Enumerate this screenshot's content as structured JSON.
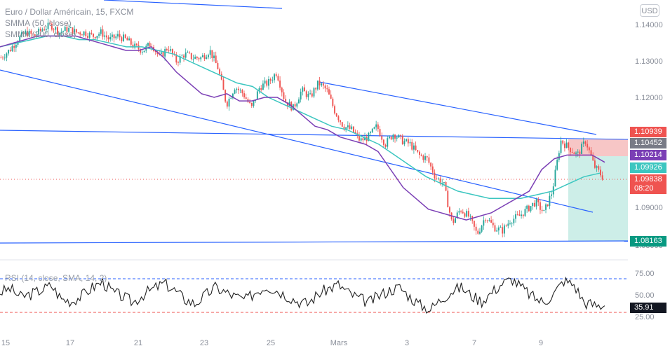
{
  "legend": {
    "symbol": "Euro / Dollar Américain, 15, FXCM",
    "ind1": "SMMA (50, close)",
    "ind2": "SMMA (200, close)",
    "rsi": "RSI (14, close, SMA, 14, 2)"
  },
  "currency": "USD",
  "price_axis": [
    "1.14000",
    "1.13000",
    "1.12000",
    "1.09000",
    "1.08000"
  ],
  "rsi_axis": [
    "75.00",
    "50.00",
    "25.00"
  ],
  "date_axis": [
    "15",
    "17",
    "21",
    "23",
    "25",
    "Mars",
    "3",
    "7",
    "9"
  ],
  "price_tags": {
    "high": "1.10939",
    "gray": "1.10452",
    "smma50": "1.10214",
    "smma200": "1.09926",
    "current": "1.09838",
    "countdown": "08:20",
    "target": "1.08163",
    "rsi_value": "35.91"
  },
  "colors": {
    "up": "#26a69a",
    "down": "#ef5350",
    "trendline": "#2962ff",
    "smma50": "#7b3fb5",
    "smma200": "#3cc6c0",
    "stop_zone": "#f7c6c6",
    "target_zone": "#cdeee8"
  },
  "chart_data": {
    "type": "candlestick",
    "title": "Euro / Dollar Américain, 15, FXCM",
    "yrange": [
      1.078,
      1.144
    ],
    "price_path": [
      1.131,
      1.133,
      1.136,
      1.138,
      1.137,
      1.139,
      1.14,
      1.138,
      1.139,
      1.138,
      1.138,
      1.137,
      1.138,
      1.136,
      1.137,
      1.136,
      1.134,
      1.133,
      1.135,
      1.131,
      1.134,
      1.13,
      1.132,
      1.131,
      1.131,
      1.133,
      1.128,
      1.118,
      1.123,
      1.121,
      1.117,
      1.123,
      1.124,
      1.127,
      1.119,
      1.117,
      1.122,
      1.12,
      1.124,
      1.122,
      1.116,
      1.112,
      1.111,
      1.108,
      1.109,
      1.112,
      1.107,
      1.11,
      1.108,
      1.107,
      1.104,
      1.103,
      1.098,
      1.096,
      1.085,
      1.089,
      1.087,
      1.082,
      1.087,
      1.084,
      1.083,
      1.086,
      1.087,
      1.089,
      1.091,
      1.088,
      1.094,
      1.108,
      1.106,
      1.104,
      1.108,
      1.101,
      1.098
    ],
    "smma50": [
      1.134,
      1.135,
      1.136,
      1.137,
      1.137,
      1.137,
      1.137,
      1.136,
      1.135,
      1.134,
      1.133,
      1.133,
      1.134,
      1.131,
      1.127,
      1.124,
      1.121,
      1.12,
      1.121,
      1.119,
      1.119,
      1.12,
      1.12,
      1.118,
      1.115,
      1.112,
      1.111,
      1.109,
      1.108,
      1.107,
      1.105,
      1.1,
      1.095,
      1.092,
      1.089,
      1.088,
      1.087,
      1.086,
      1.087,
      1.088,
      1.09,
      1.092,
      1.094,
      1.1,
      1.103,
      1.104,
      1.104,
      1.104,
      1.102
    ],
    "smma200": [
      1.134,
      1.135,
      1.136,
      1.137,
      1.137,
      1.136,
      1.136,
      1.135,
      1.134,
      1.134,
      1.133,
      1.132,
      1.13,
      1.128,
      1.126,
      1.124,
      1.123,
      1.12,
      1.118,
      1.116,
      1.114,
      1.112,
      1.111,
      1.109,
      1.107,
      1.104,
      1.101,
      1.098,
      1.096,
      1.094,
      1.093,
      1.092,
      1.092,
      1.092,
      1.093,
      1.094,
      1.096,
      1.098,
      1.099
    ],
    "rsi": [
      55,
      60,
      48,
      52,
      58,
      65,
      45,
      42,
      50,
      62,
      70,
      55,
      48,
      40,
      52,
      60,
      68,
      58,
      45,
      38,
      50,
      62,
      55,
      48,
      44,
      56,
      64,
      58,
      50,
      42,
      38,
      52,
      60,
      66,
      54,
      46,
      40,
      50,
      58,
      62,
      48,
      36,
      30,
      44,
      56,
      62,
      50,
      42,
      55,
      68,
      74,
      60,
      48,
      40,
      52,
      72,
      66,
      40,
      36,
      35
    ]
  }
}
